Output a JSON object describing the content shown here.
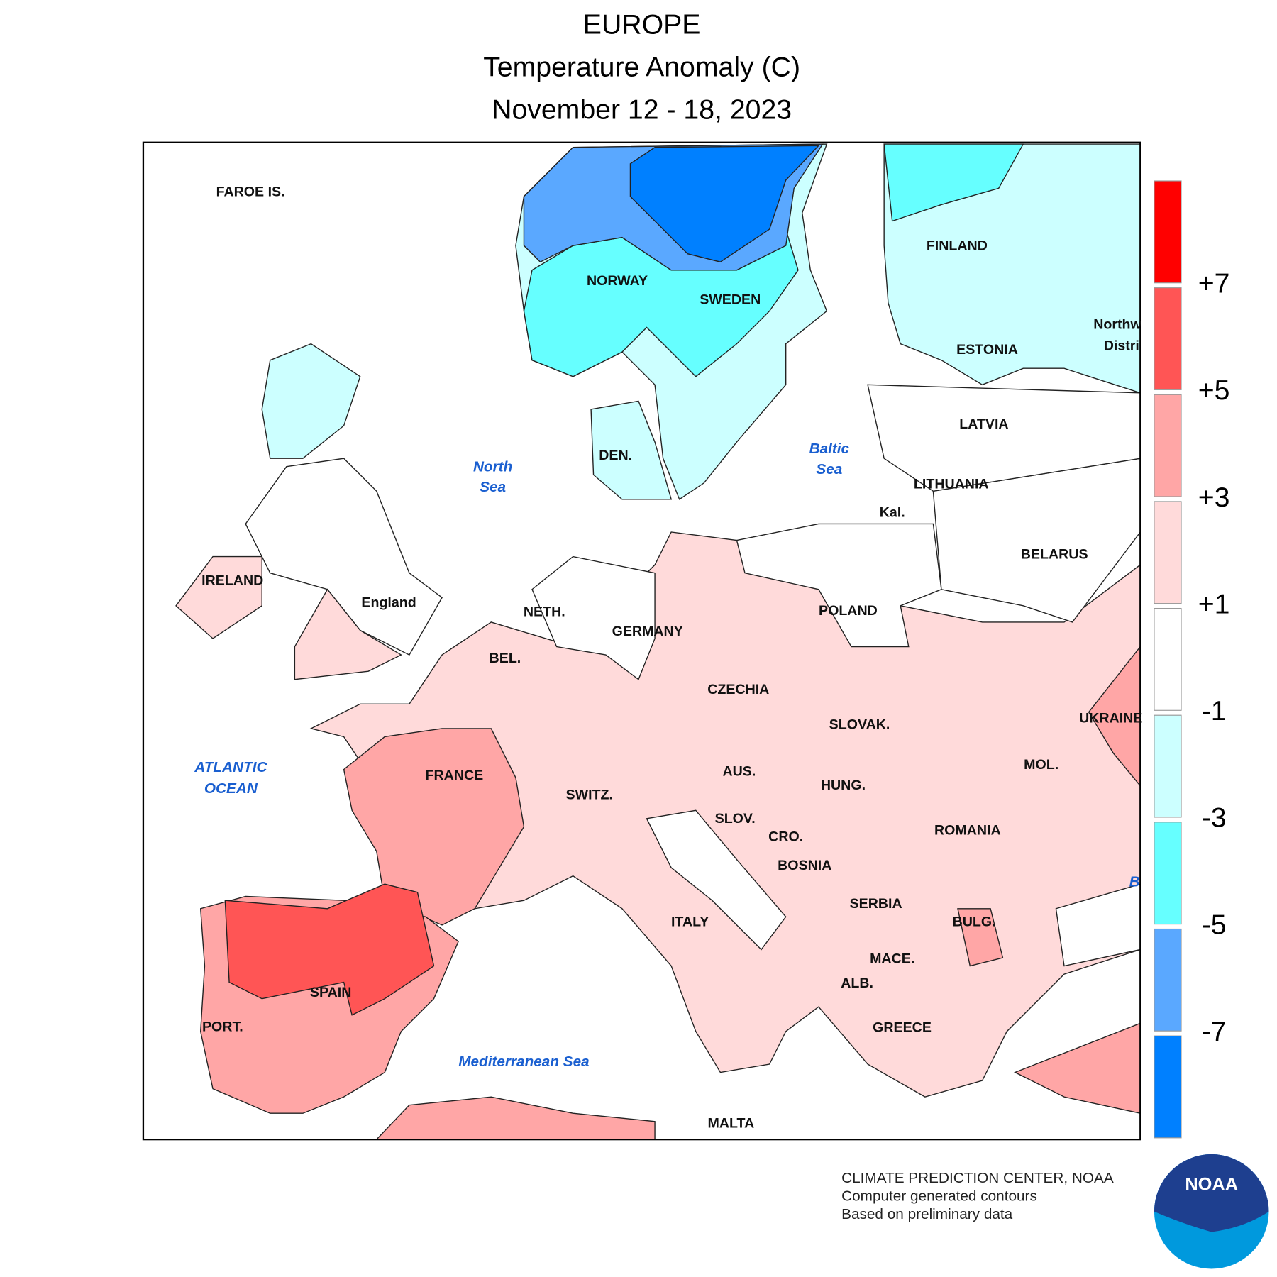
{
  "header": {
    "region": "EUROPE",
    "title": "Temperature Anomaly (C)",
    "period": "November 12 - 18, 2023"
  },
  "map": {
    "labels": [
      "FAROE IS.",
      "FINLAND",
      "NORWAY",
      "SWEDEN",
      "Northw",
      "Distri",
      "ESTONIA",
      "LATVIA",
      "DEN.",
      "LITHUANIA",
      "Kal.",
      "BELARUS",
      "IRELAND",
      "England",
      "POLAND",
      "NETH.",
      "GERMANY",
      "BEL.",
      "CZECHIA",
      "SLOVAK.",
      "UKRAINE",
      "FRANCE",
      "AUS.",
      "MOL.",
      "HUNG.",
      "SWITZ.",
      "SLOV.",
      "ROMANIA",
      "CRO.",
      "BOSNIA",
      "SERBIA",
      "ITALY",
      "BULG.",
      "MACE.",
      "ALB.",
      "SPAIN",
      "PORT.",
      "GREECE",
      "MALTA"
    ],
    "water_labels": [
      "North",
      "Sea",
      "Baltic",
      "Sea",
      "ATLANTIC",
      "OCEAN",
      "B",
      "Mediterranean Sea"
    ]
  },
  "legend": {
    "colors": [
      "#ff0000",
      "#ff5555",
      "#ffa6a6",
      "#ffdada",
      "#ffffff",
      "#ccffff",
      "#66ffff",
      "#5aa8ff",
      "#0080ff"
    ],
    "labels": [
      "+7",
      "+5",
      "+3",
      "+1",
      "-1",
      "-3",
      "-5",
      "-7"
    ]
  },
  "footer": {
    "lines": [
      "CLIMATE PREDICTION CENTER, NOAA",
      "Computer generated contours",
      "Based on preliminary data"
    ],
    "logo": "NOAA"
  }
}
